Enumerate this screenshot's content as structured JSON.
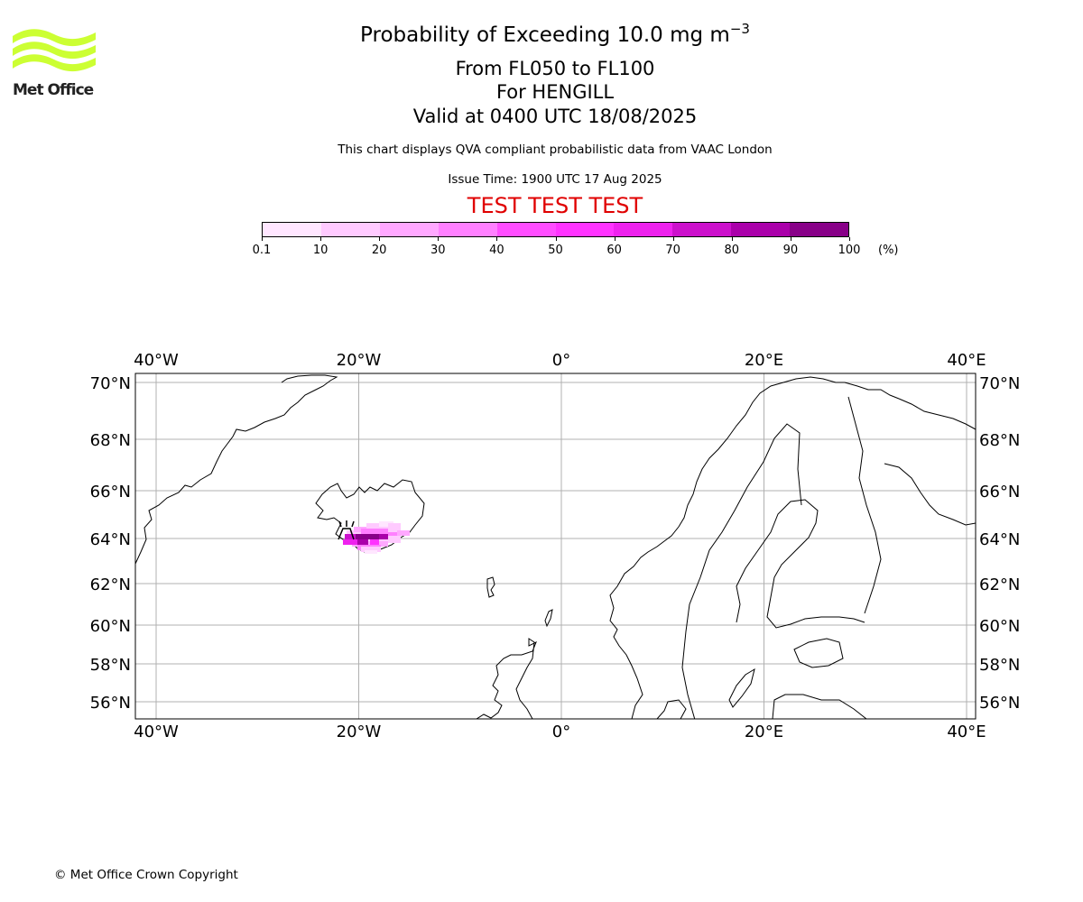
{
  "logo": {
    "text": "Met Office",
    "color": "#ccff33"
  },
  "title": {
    "line1_main": "Probability of Exceeding 10.0 mg m",
    "line1_sup": "−3",
    "line2": "From FL050 to FL100",
    "line3": "For HENGILL",
    "line4": "Valid at 0400 UTC 18/08/2025",
    "subtitle": "This chart displays QVA compliant probabilistic data from VAAC London",
    "issue_time": "Issue Time: 1900 UTC 17 Aug 2025",
    "test_banner": "TEST TEST TEST",
    "test_color": "#e00000"
  },
  "colorbar": {
    "labels": [
      "0.1",
      "10",
      "20",
      "30",
      "40",
      "50",
      "60",
      "70",
      "80",
      "90",
      "100"
    ],
    "colors": [
      "#ffe6ff",
      "#ffcaff",
      "#ffa8ff",
      "#ff80ff",
      "#ff4dff",
      "#ff33ff",
      "#ee22ee",
      "#cc11cc",
      "#aa00aa",
      "#880088",
      "#660066"
    ],
    "unit": "(%)"
  },
  "map": {
    "lon_ticks": [
      "40°W",
      "20°W",
      "0°",
      "20°E",
      "40°E"
    ],
    "lat_ticks": [
      "70°N",
      "68°N",
      "66°N",
      "64°N",
      "62°N",
      "60°N",
      "58°N",
      "56°N"
    ],
    "lon_values": [
      -40,
      -20,
      0,
      20,
      40
    ],
    "lat_values": [
      70,
      68,
      66,
      64,
      62,
      60,
      58,
      56
    ],
    "volcano": "HENGILL",
    "volcano_lat": 64.08,
    "volcano_lon": -21.3,
    "gridline_color": "#b0b0b0"
  },
  "footer": {
    "copyright": "© Met Office Crown Copyright"
  }
}
